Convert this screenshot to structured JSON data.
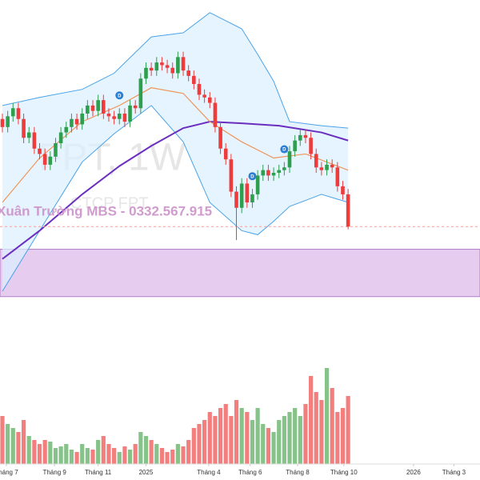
{
  "chart_data": {
    "type": "candlestick",
    "symbol": "FPT, 1W",
    "company": "CTCP FPT",
    "watermark": "Xuân Trường MBS - 0332.567.915",
    "xlim": [
      -0.45,
      89.8
    ],
    "ylim": [
      47.4,
      175.2
    ],
    "vlim": [
      0,
      140
    ],
    "x_labels": [
      {
        "value": 0.75,
        "label": "Tháng 7"
      },
      {
        "value": 9.8,
        "label": "Tháng 9"
      },
      {
        "value": 18,
        "label": "Tháng 11"
      },
      {
        "value": 27,
        "label": "2025"
      },
      {
        "value": 38.8,
        "label": "Tháng 4"
      },
      {
        "value": 46.6,
        "label": "Tháng 6"
      },
      {
        "value": 55.5,
        "label": "Tháng 8"
      },
      {
        "value": 64.2,
        "label": "Tháng 10"
      },
      {
        "value": 77.3,
        "label": "2026"
      },
      {
        "value": 84.9,
        "label": "Tháng 3"
      }
    ],
    "up_color": "#2e9e4f",
    "down_color": "#ee3b3b",
    "vol_up_color": "#86c28a",
    "vol_down_color": "#f27e7e",
    "open": [
      131,
      128,
      132,
      135,
      131,
      124,
      126,
      120,
      118,
      114,
      117,
      122,
      126,
      128,
      131,
      129,
      133,
      136,
      134,
      138,
      133,
      132,
      131,
      133,
      130,
      136,
      135,
      146,
      150,
      149,
      152,
      151,
      150,
      148,
      154,
      149,
      147,
      144,
      140,
      139,
      137,
      128,
      120,
      116,
      104,
      98,
      107,
      100,
      103,
      110,
      112,
      110,
      111,
      112,
      113,
      119,
      123,
      125,
      124,
      118,
      113,
      112,
      114,
      113,
      106,
      103
    ],
    "high": [
      133,
      134,
      137,
      137,
      133,
      128,
      128,
      122,
      120,
      119,
      124,
      128,
      130,
      133,
      133,
      135,
      138,
      138,
      140,
      140,
      135,
      134,
      135,
      135,
      138,
      138,
      148,
      152,
      152,
      154,
      154,
      153,
      152,
      156,
      156,
      151,
      149,
      146,
      142,
      141,
      139,
      130,
      122,
      118,
      106,
      109,
      109,
      105,
      112,
      114,
      114,
      113,
      114,
      115,
      121,
      125,
      127,
      127,
      126,
      120,
      115,
      116,
      116,
      115,
      108,
      105
    ],
    "low": [
      126,
      126,
      130,
      129,
      122,
      122,
      118,
      116,
      112,
      112,
      115,
      120,
      124,
      126,
      127,
      127,
      131,
      132,
      132,
      131,
      130,
      129,
      129,
      128,
      128,
      133,
      133,
      144,
      147,
      147,
      149,
      148,
      146,
      146,
      147,
      145,
      142,
      138,
      137,
      135,
      126,
      118,
      114,
      102,
      86,
      96,
      98,
      98,
      101,
      108,
      108,
      108,
      109,
      110,
      111,
      117,
      121,
      122,
      116,
      111,
      110,
      110,
      111,
      104,
      101,
      90
    ],
    "close": [
      128,
      132,
      135,
      131,
      124,
      126,
      120,
      118,
      114,
      117,
      122,
      126,
      128,
      131,
      129,
      133,
      136,
      134,
      138,
      133,
      132,
      131,
      133,
      130,
      136,
      135,
      146,
      150,
      149,
      152,
      151,
      150,
      148,
      154,
      149,
      147,
      144,
      140,
      139,
      137,
      128,
      120,
      116,
      104,
      98,
      107,
      100,
      103,
      110,
      112,
      110,
      111,
      112,
      113,
      119,
      123,
      125,
      124,
      118,
      113,
      112,
      114,
      113,
      106,
      103,
      91
    ],
    "volume": [
      60,
      50,
      45,
      40,
      55,
      35,
      30,
      25,
      30,
      28,
      20,
      22,
      25,
      18,
      15,
      25,
      20,
      18,
      30,
      35,
      25,
      20,
      15,
      22,
      18,
      25,
      40,
      35,
      30,
      25,
      20,
      15,
      18,
      25,
      22,
      30,
      45,
      50,
      55,
      65,
      60,
      70,
      75,
      60,
      80,
      70,
      65,
      55,
      70,
      50,
      45,
      40,
      55,
      60,
      65,
      70,
      60,
      75,
      110,
      90,
      80,
      120,
      95,
      65,
      70,
      85
    ],
    "indicators": [
      {
        "color": "#6a2fbf",
        "x": [
          0,
          7,
          15,
          22,
          28,
          34,
          39,
          45,
          52,
          60,
          65
        ],
        "values": [
          79,
          89.5,
          103,
          113.5,
          121,
          127.6,
          130,
          129.4,
          128.5,
          126,
          123
        ]
      },
      {
        "color": "#f0955a",
        "x": [
          0,
          7,
          15,
          22,
          28,
          34,
          39,
          45,
          51,
          57,
          65
        ],
        "values": [
          100,
          116.5,
          130,
          136,
          142.6,
          140.5,
          130,
          122.5,
          116.5,
          118,
          112
        ]
      }
    ],
    "bands": {
      "color": "#4aa3e8",
      "fill": "#dcefff",
      "x": [
        0,
        7,
        15,
        21,
        28,
        34,
        39,
        45,
        48,
        51,
        54,
        60,
        65
      ],
      "upper": [
        136,
        139,
        142,
        148,
        161.5,
        163,
        170.5,
        164.5,
        155,
        145,
        130,
        128.5,
        127.6
      ],
      "lower": [
        67,
        89.5,
        115,
        125.5,
        136,
        122.5,
        100,
        89.5,
        88,
        93,
        98.5,
        103,
        100
      ]
    },
    "zone": {
      "from": 65,
      "to": 82.6,
      "color": "#e6cdef"
    },
    "dividends": [
      22,
      47,
      53
    ],
    "dividend_label": "D"
  }
}
